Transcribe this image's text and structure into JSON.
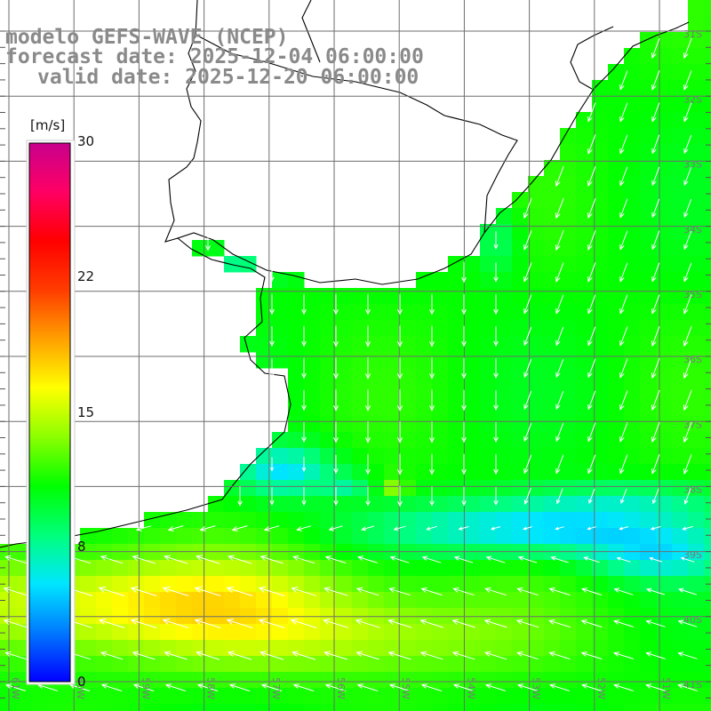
{
  "titles": {
    "model": "modelo GEFS-WAVE (NCEP)",
    "forecast": "forecast date: 2025-12-04 06:00:00",
    "valid": "valid date: 2025-12-20 06:00:00"
  },
  "colorbar": {
    "unit": "[m/s]",
    "ticks": [
      "30",
      "22",
      "15",
      "8",
      "0"
    ],
    "tick_values": [
      30,
      22,
      15,
      8,
      0
    ],
    "min": 0,
    "max": 30,
    "colors": [
      "#0000ff",
      "#0078ff",
      "#00e6ff",
      "#00ff7a",
      "#00ff00",
      "#8cff00",
      "#ffff00",
      "#ffa000",
      "#ff3c00",
      "#ff0000",
      "#ff0064",
      "#c8008c"
    ]
  },
  "map": {
    "lat_labels": [
      "31S",
      "32S",
      "33S",
      "34S",
      "35S",
      "36S",
      "37S",
      "38S",
      "39S",
      "40S",
      "41S"
    ],
    "lon_labels": [
      "61W",
      "60W",
      "59W",
      "58W",
      "57W",
      "56W",
      "55W",
      "54W",
      "53W",
      "52W",
      "51W"
    ],
    "lat_range": [
      -41.3,
      -30.2
    ],
    "lon_range": [
      -61.8,
      -50.8
    ],
    "land_color": "#ffffff",
    "grid_color": "#6e6e6e",
    "arrow_color": "#ffffff"
  }
}
